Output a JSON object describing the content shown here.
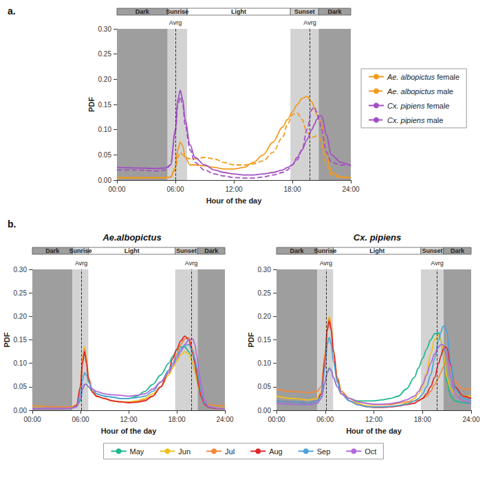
{
  "chart_data": [
    {
      "panel": "a.",
      "type": "line",
      "xlabel": "Hour of the day",
      "ylabel": "PDF",
      "legend": "right",
      "xlim": [
        0,
        24
      ],
      "xticks": [
        {
          "value": 0,
          "label": "00:00"
        },
        {
          "value": 6,
          "label": "06:00"
        },
        {
          "value": 12,
          "label": "12:00"
        },
        {
          "value": 18,
          "label": "18:00"
        },
        {
          "value": 24,
          "label": "24:00"
        }
      ],
      "ylim": [
        0,
        0.3
      ],
      "yticks": [
        {
          "value": 0,
          "label": "0.00"
        },
        {
          "value": 0.05,
          "label": "0.05"
        },
        {
          "value": 0.1,
          "label": "0.10"
        },
        {
          "value": 0.15,
          "label": "0.15"
        },
        {
          "value": 0.2,
          "label": "0.20"
        },
        {
          "value": 0.25,
          "label": "0.25"
        },
        {
          "value": 0.3,
          "label": "0.30"
        }
      ],
      "periods": [
        {
          "label": "Dark",
          "start": 0,
          "end": 5.2,
          "color": "#9e9e9e"
        },
        {
          "label": "Sunrise",
          "start": 5.2,
          "end": 7.2,
          "color": "#d3d3d3"
        },
        {
          "label": "Light",
          "start": 7.2,
          "end": 17.8,
          "color": "#ffffff"
        },
        {
          "label": "Sunset",
          "start": 17.8,
          "end": 20.7,
          "color": "#d3d3d3"
        },
        {
          "label": "Dark",
          "start": 20.7,
          "end": 24,
          "color": "#9e9e9e"
        }
      ],
      "averages": [
        {
          "label": "Avrg",
          "value": 6.0
        },
        {
          "label": "Avrg",
          "value": 19.8
        }
      ],
      "x": [
        0,
        2,
        4,
        5,
        5.5,
        6,
        6.25,
        6.5,
        6.75,
        7,
        7.5,
        8,
        9,
        10,
        11,
        12,
        13,
        14,
        15,
        16,
        17,
        17.5,
        18,
        18.5,
        19,
        19.5,
        20,
        20.25,
        20.5,
        20.75,
        21,
        21.5,
        22,
        23,
        24
      ],
      "series": [
        {
          "name": "Ae. albopictus female",
          "color": "#f39a1c",
          "line_style": "solid",
          "values": [
            0.005,
            0.005,
            0.005,
            0.005,
            0.006,
            0.025,
            0.06,
            0.075,
            0.068,
            0.045,
            0.03,
            0.03,
            0.028,
            0.025,
            0.022,
            0.022,
            0.025,
            0.035,
            0.05,
            0.075,
            0.105,
            0.12,
            0.135,
            0.15,
            0.162,
            0.166,
            0.155,
            0.145,
            0.13,
            0.12,
            0.11,
            0.05,
            0.015,
            0.006,
            0.005
          ]
        },
        {
          "name": "Ae. albopictus male",
          "color": "#f39a1c",
          "line_style": "dashed",
          "values": [
            0.004,
            0.004,
            0.004,
            0.004,
            0.006,
            0.02,
            0.045,
            0.055,
            0.05,
            0.045,
            0.042,
            0.042,
            0.045,
            0.042,
            0.035,
            0.03,
            0.03,
            0.032,
            0.038,
            0.055,
            0.085,
            0.11,
            0.13,
            0.133,
            0.12,
            0.095,
            0.085,
            0.086,
            0.088,
            0.085,
            0.07,
            0.03,
            0.01,
            0.005,
            0.004
          ]
        },
        {
          "name": "Cx. pipiens female",
          "color": "#a24fc2",
          "line_style": "solid",
          "values": [
            0.025,
            0.024,
            0.023,
            0.024,
            0.03,
            0.1,
            0.16,
            0.178,
            0.16,
            0.12,
            0.07,
            0.045,
            0.03,
            0.02,
            0.015,
            0.012,
            0.01,
            0.01,
            0.012,
            0.015,
            0.02,
            0.025,
            0.03,
            0.045,
            0.06,
            0.08,
            0.1,
            0.11,
            0.12,
            0.127,
            0.128,
            0.09,
            0.05,
            0.035,
            0.028
          ]
        },
        {
          "name": "Cx. pipiens male",
          "color": "#a24fc2",
          "line_style": "dashed",
          "values": [
            0.02,
            0.02,
            0.018,
            0.02,
            0.03,
            0.095,
            0.15,
            0.165,
            0.15,
            0.11,
            0.06,
            0.035,
            0.02,
            0.012,
            0.008,
            0.005,
            0.004,
            0.004,
            0.006,
            0.01,
            0.015,
            0.02,
            0.03,
            0.04,
            0.06,
            0.1,
            0.14,
            0.145,
            0.135,
            0.12,
            0.1,
            0.055,
            0.035,
            0.03,
            0.03
          ]
        }
      ]
    },
    {
      "panel": "b.",
      "type": "line",
      "title": "Ae.albopictus",
      "xlabel": "Hour of the day",
      "ylabel": "PDF",
      "legend": "bottom",
      "xlim": [
        0,
        24
      ],
      "xticks": [
        {
          "value": 0,
          "label": "00:00"
        },
        {
          "value": 6,
          "label": "06:00"
        },
        {
          "value": 12,
          "label": "12:00"
        },
        {
          "value": 18,
          "label": "18:00"
        },
        {
          "value": 24,
          "label": "24:00"
        }
      ],
      "ylim": [
        0,
        0.3
      ],
      "yticks": [
        {
          "value": 0,
          "label": "0.00"
        },
        {
          "value": 0.05,
          "label": "0.05"
        },
        {
          "value": 0.1,
          "label": "0.10"
        },
        {
          "value": 0.15,
          "label": "0.15"
        },
        {
          "value": 0.2,
          "label": "0.20"
        },
        {
          "value": 0.25,
          "label": "0.25"
        },
        {
          "value": 0.3,
          "label": "0.30"
        }
      ],
      "periods": [
        {
          "label": "Dark",
          "start": 0,
          "end": 5.0,
          "color": "#9e9e9e"
        },
        {
          "label": "Sunrise",
          "start": 5.0,
          "end": 7.0,
          "color": "#d3d3d3"
        },
        {
          "label": "Light",
          "start": 7.0,
          "end": 17.8,
          "color": "#ffffff"
        },
        {
          "label": "Sunset",
          "start": 17.8,
          "end": 20.6,
          "color": "#d3d3d3"
        },
        {
          "label": "Dark",
          "start": 20.6,
          "end": 24,
          "color": "#9e9e9e"
        }
      ],
      "averages": [
        {
          "label": "Avrg",
          "value": 6.1
        },
        {
          "label": "Avrg",
          "value": 19.8
        }
      ],
      "x": [
        0,
        2,
        4,
        5,
        5.5,
        6,
        6.25,
        6.5,
        6.75,
        7,
        7.5,
        8,
        9,
        10,
        11,
        12,
        13,
        14,
        15,
        16,
        17,
        17.5,
        18,
        18.5,
        19,
        19.5,
        20,
        20.25,
        20.5,
        20.75,
        21,
        21.5,
        22,
        23,
        24
      ],
      "series": [
        {
          "name": "May",
          "color": "#1db88e",
          "values": [
            0.005,
            0.005,
            0.005,
            0.006,
            0.008,
            0.02,
            0.045,
            0.055,
            0.055,
            0.05,
            0.04,
            0.035,
            0.03,
            0.028,
            0.025,
            0.025,
            0.03,
            0.04,
            0.055,
            0.075,
            0.1,
            0.115,
            0.128,
            0.135,
            0.135,
            0.125,
            0.1,
            0.085,
            0.065,
            0.045,
            0.03,
            0.015,
            0.008,
            0.006,
            0.005
          ]
        },
        {
          "name": "Jun",
          "color": "#ecc21c",
          "values": [
            0.006,
            0.005,
            0.005,
            0.006,
            0.01,
            0.05,
            0.11,
            0.135,
            0.11,
            0.07,
            0.04,
            0.03,
            0.025,
            0.02,
            0.018,
            0.018,
            0.02,
            0.025,
            0.035,
            0.05,
            0.075,
            0.09,
            0.105,
            0.118,
            0.125,
            0.12,
            0.1,
            0.085,
            0.065,
            0.045,
            0.03,
            0.015,
            0.008,
            0.006,
            0.006
          ]
        },
        {
          "name": "Jul",
          "color": "#f08a3c",
          "values": [
            0.01,
            0.008,
            0.007,
            0.008,
            0.012,
            0.05,
            0.105,
            0.13,
            0.105,
            0.07,
            0.04,
            0.03,
            0.025,
            0.02,
            0.018,
            0.017,
            0.018,
            0.022,
            0.03,
            0.05,
            0.08,
            0.1,
            0.12,
            0.14,
            0.152,
            0.155,
            0.13,
            0.11,
            0.085,
            0.06,
            0.04,
            0.02,
            0.012,
            0.01,
            0.01
          ]
        },
        {
          "name": "Aug",
          "color": "#e0262a",
          "values": [
            0.004,
            0.004,
            0.004,
            0.005,
            0.01,
            0.05,
            0.1,
            0.125,
            0.1,
            0.065,
            0.038,
            0.03,
            0.025,
            0.02,
            0.018,
            0.016,
            0.017,
            0.02,
            0.03,
            0.05,
            0.085,
            0.11,
            0.13,
            0.148,
            0.158,
            0.15,
            0.12,
            0.1,
            0.075,
            0.05,
            0.03,
            0.012,
            0.006,
            0.004,
            0.004
          ]
        },
        {
          "name": "Sep",
          "color": "#4da3d9",
          "values": [
            0.004,
            0.004,
            0.004,
            0.005,
            0.008,
            0.035,
            0.065,
            0.08,
            0.075,
            0.06,
            0.045,
            0.035,
            0.03,
            0.028,
            0.025,
            0.025,
            0.027,
            0.03,
            0.04,
            0.06,
            0.085,
            0.1,
            0.115,
            0.13,
            0.138,
            0.14,
            0.125,
            0.11,
            0.09,
            0.065,
            0.04,
            0.015,
            0.007,
            0.005,
            0.004
          ]
        },
        {
          "name": "Oct",
          "color": "#b06ad9",
          "values": [
            0.004,
            0.004,
            0.004,
            0.005,
            0.007,
            0.025,
            0.045,
            0.055,
            0.055,
            0.05,
            0.045,
            0.04,
            0.035,
            0.033,
            0.032,
            0.03,
            0.032,
            0.035,
            0.045,
            0.06,
            0.08,
            0.095,
            0.11,
            0.125,
            0.14,
            0.15,
            0.152,
            0.14,
            0.115,
            0.085,
            0.055,
            0.02,
            0.008,
            0.005,
            0.004
          ]
        }
      ]
    },
    {
      "type": "line",
      "title": "Cx. pipiens",
      "xlabel": "Hour of the day",
      "ylabel": "PDF",
      "legend": "bottom",
      "xlim": [
        0,
        24
      ],
      "xticks": [
        {
          "value": 0,
          "label": "00:00"
        },
        {
          "value": 6,
          "label": "06:00"
        },
        {
          "value": 12,
          "label": "12:00"
        },
        {
          "value": 18,
          "label": "18:00"
        },
        {
          "value": 24,
          "label": "24:00"
        }
      ],
      "ylim": [
        0,
        0.3
      ],
      "yticks": [
        {
          "value": 0,
          "label": "0.00"
        },
        {
          "value": 0.05,
          "label": "0.05"
        },
        {
          "value": 0.1,
          "label": "0.10"
        },
        {
          "value": 0.15,
          "label": "0.15"
        },
        {
          "value": 0.2,
          "label": "0.20"
        },
        {
          "value": 0.25,
          "label": "0.25"
        },
        {
          "value": 0.3,
          "label": "0.30"
        }
      ],
      "periods": [
        {
          "label": "Dark",
          "start": 0,
          "end": 5.0,
          "color": "#9e9e9e"
        },
        {
          "label": "Sunrise",
          "start": 5.0,
          "end": 7.0,
          "color": "#d3d3d3"
        },
        {
          "label": "Light",
          "start": 7.0,
          "end": 17.8,
          "color": "#ffffff"
        },
        {
          "label": "Sunset",
          "start": 17.8,
          "end": 20.6,
          "color": "#d3d3d3"
        },
        {
          "label": "Dark",
          "start": 20.6,
          "end": 24,
          "color": "#9e9e9e"
        }
      ],
      "averages": [
        {
          "label": "Avrg",
          "value": 6.1
        },
        {
          "label": "Avrg",
          "value": 19.8
        }
      ],
      "x": [
        0,
        2,
        4,
        5,
        5.5,
        6,
        6.25,
        6.5,
        6.75,
        7,
        7.5,
        8,
        9,
        10,
        11,
        12,
        13,
        14,
        15,
        16,
        17,
        17.5,
        18,
        18.5,
        19,
        19.5,
        20,
        20.25,
        20.5,
        20.75,
        21,
        21.5,
        22,
        23,
        24
      ],
      "series": [
        {
          "name": "May",
          "color": "#1db88e",
          "values": [
            0.015,
            0.013,
            0.012,
            0.015,
            0.025,
            0.06,
            0.08,
            0.09,
            0.085,
            0.07,
            0.05,
            0.035,
            0.025,
            0.02,
            0.02,
            0.02,
            0.022,
            0.025,
            0.03,
            0.045,
            0.07,
            0.09,
            0.11,
            0.13,
            0.15,
            0.163,
            0.165,
            0.15,
            0.125,
            0.09,
            0.06,
            0.03,
            0.02,
            0.016,
            0.015
          ]
        },
        {
          "name": "Jun",
          "color": "#ecc21c",
          "values": [
            0.03,
            0.025,
            0.022,
            0.025,
            0.04,
            0.12,
            0.18,
            0.2,
            0.18,
            0.13,
            0.07,
            0.04,
            0.025,
            0.015,
            0.01,
            0.008,
            0.008,
            0.008,
            0.01,
            0.015,
            0.025,
            0.035,
            0.05,
            0.08,
            0.12,
            0.15,
            0.16,
            0.15,
            0.13,
            0.1,
            0.07,
            0.045,
            0.035,
            0.03,
            0.03
          ]
        },
        {
          "name": "Jul",
          "color": "#f08a3c",
          "values": [
            0.045,
            0.04,
            0.038,
            0.04,
            0.05,
            0.12,
            0.175,
            0.195,
            0.175,
            0.13,
            0.07,
            0.04,
            0.025,
            0.018,
            0.015,
            0.012,
            0.012,
            0.012,
            0.015,
            0.018,
            0.02,
            0.022,
            0.025,
            0.03,
            0.04,
            0.055,
            0.07,
            0.08,
            0.09,
            0.098,
            0.1,
            0.085,
            0.06,
            0.045,
            0.045
          ]
        },
        {
          "name": "Aug",
          "color": "#e0262a",
          "values": [
            0.02,
            0.018,
            0.016,
            0.02,
            0.035,
            0.11,
            0.17,
            0.19,
            0.17,
            0.125,
            0.065,
            0.035,
            0.02,
            0.012,
            0.008,
            0.006,
            0.006,
            0.007,
            0.009,
            0.012,
            0.015,
            0.02,
            0.025,
            0.035,
            0.05,
            0.07,
            0.1,
            0.115,
            0.128,
            0.135,
            0.133,
            0.095,
            0.05,
            0.03,
            0.025
          ]
        },
        {
          "name": "Sep",
          "color": "#4da3d9",
          "values": [
            0.02,
            0.018,
            0.016,
            0.02,
            0.03,
            0.09,
            0.14,
            0.155,
            0.14,
            0.105,
            0.06,
            0.035,
            0.02,
            0.012,
            0.008,
            0.007,
            0.007,
            0.008,
            0.01,
            0.013,
            0.02,
            0.025,
            0.035,
            0.05,
            0.075,
            0.11,
            0.15,
            0.165,
            0.178,
            0.18,
            0.165,
            0.1,
            0.045,
            0.025,
            0.02
          ]
        },
        {
          "name": "Oct",
          "color": "#b06ad9",
          "values": [
            0.015,
            0.013,
            0.012,
            0.015,
            0.025,
            0.06,
            0.08,
            0.088,
            0.085,
            0.07,
            0.05,
            0.035,
            0.025,
            0.018,
            0.015,
            0.013,
            0.013,
            0.014,
            0.017,
            0.022,
            0.03,
            0.04,
            0.055,
            0.075,
            0.1,
            0.12,
            0.135,
            0.14,
            0.14,
            0.13,
            0.115,
            0.07,
            0.035,
            0.02,
            0.015
          ]
        }
      ]
    }
  ]
}
